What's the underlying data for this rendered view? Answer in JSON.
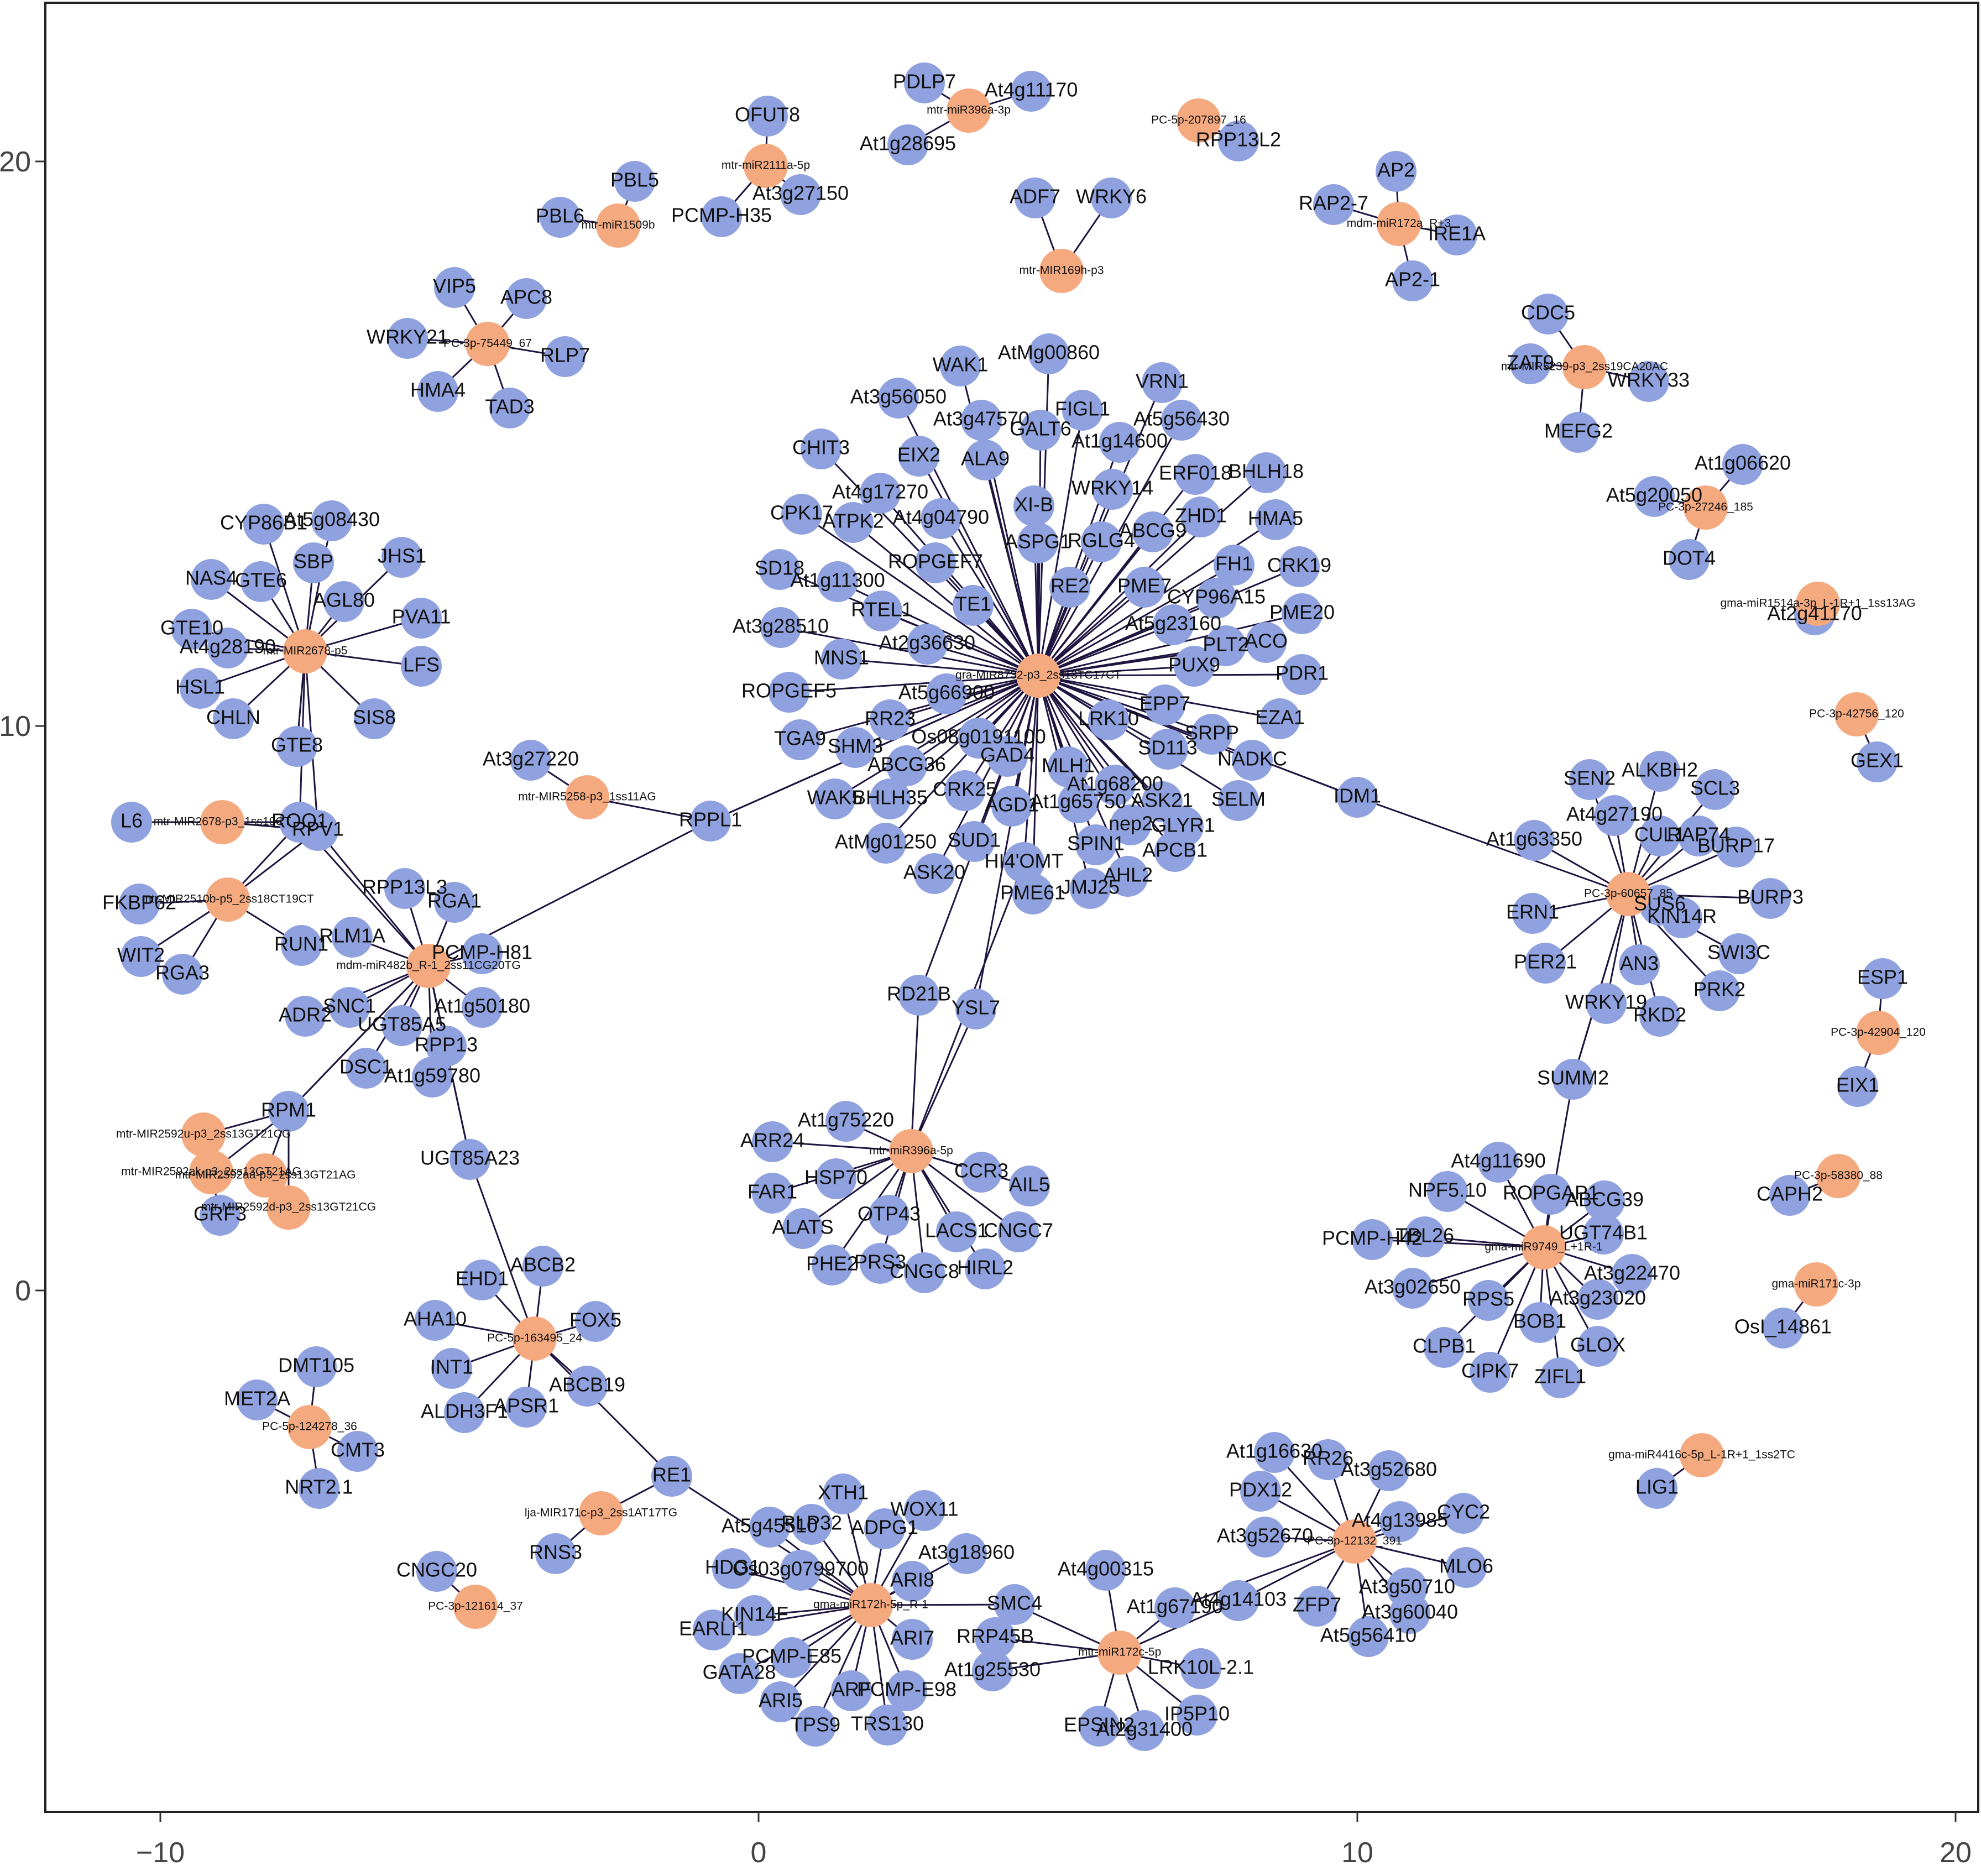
{
  "axes": {
    "x_ticks": [
      "−10",
      "0",
      "10",
      "20"
    ],
    "y_ticks": [
      "20",
      "10",
      "0"
    ]
  },
  "colors": {
    "mirna": "#f5a97f",
    "gene": "#8fa2df",
    "edge": "#1f1440"
  },
  "mirna_nodes": [
    {
      "id": "m1",
      "label": "mtr-miR396a-3p"
    },
    {
      "id": "m2",
      "label": "PC-5p-207897_16"
    },
    {
      "id": "m3",
      "label": "mtr-miR2111a-5p"
    },
    {
      "id": "m4",
      "label": "mtr-miR1509b"
    },
    {
      "id": "m5",
      "label": "mtr-MIR169h-p3"
    },
    {
      "id": "m6",
      "label": "mdm-miR172a_R+3"
    },
    {
      "id": "m7",
      "label": "PC-3p-75449_67"
    },
    {
      "id": "m8",
      "label": "mtr-MIR5239-p3_2ss19CA20AC"
    },
    {
      "id": "m9",
      "label": "PC-3p-27246_185"
    },
    {
      "id": "m10",
      "label": "gma-miR1514a-3p_L-1R+1_1ss13AG"
    },
    {
      "id": "m11",
      "label": "mtr-MIR2678-p5"
    },
    {
      "id": "m12",
      "label": "gra-MIR8732-p3_2ss13TC17CT"
    },
    {
      "id": "m13",
      "label": "PC-3p-42756_120"
    },
    {
      "id": "m14",
      "label": "mtr-MIR5258-p3_1ss11AG"
    },
    {
      "id": "m15",
      "label": "mtr-MIR2678-p3_1ss19CT"
    },
    {
      "id": "m16",
      "label": "mtr-MIR2510b-p5_2ss18CT19CT"
    },
    {
      "id": "m17",
      "label": "mdm-miR482b_R-1_2ss11CG20TG"
    },
    {
      "id": "m18",
      "label": "PC-3p-60657_85"
    },
    {
      "id": "m19",
      "label": "PC-3p-42904_120"
    },
    {
      "id": "m20",
      "label": "mtr-MIR2592u-p3_2ss13GT21CG"
    },
    {
      "id": "m21",
      "label": "mtr-MIR2592ak-p3_2ss13GT21AG"
    },
    {
      "id": "m22",
      "label": "mtr-MIR2592aa-p3_2ss13GT21AG"
    },
    {
      "id": "m23",
      "label": "mtr-MIR2592d-p3_2ss13GT21CG"
    },
    {
      "id": "m24",
      "label": "mtr-miR396a-5p"
    },
    {
      "id": "m25",
      "label": "PC-3p-58380_88"
    },
    {
      "id": "m26",
      "label": "gma-miR9749_L+1R-1"
    },
    {
      "id": "m27",
      "label": "PC-5p-163495_24"
    },
    {
      "id": "m28",
      "label": "gma-miR171c-3p"
    },
    {
      "id": "m29",
      "label": "PC-5p-124278_36"
    },
    {
      "id": "m30",
      "label": "gma-miR4416c-5p_L-1R+1_1ss2TC"
    },
    {
      "id": "m31",
      "label": "lja-MIR171c-p3_2ss1AT17TG"
    },
    {
      "id": "m32",
      "label": "PC-3p-12132_391"
    },
    {
      "id": "m33",
      "label": "PC-3p-121614_37"
    },
    {
      "id": "m34",
      "label": "gma-miR172h-5p_R-1"
    },
    {
      "id": "m35",
      "label": "mtr-miR172c-5p"
    }
  ],
  "gene_nodes": [
    {
      "label": "PDLP7",
      "mirna": "m1"
    },
    {
      "label": "At4g11170",
      "mirna": "m1"
    },
    {
      "label": "At1g28695",
      "mirna": "m1"
    },
    {
      "label": "RPP13L2",
      "mirna": "m2"
    },
    {
      "label": "OFUT8",
      "mirna": "m3"
    },
    {
      "label": "At3g27150",
      "mirna": "m3"
    },
    {
      "label": "PCMP-H35",
      "mirna": "m3"
    },
    {
      "label": "PBL5",
      "mirna": "m4"
    },
    {
      "label": "PBL6",
      "mirna": "m4"
    },
    {
      "label": "ADF7",
      "mirna": "m5"
    },
    {
      "label": "WRKY6",
      "mirna": "m5"
    },
    {
      "label": "AP2",
      "mirna": "m6"
    },
    {
      "label": "RAP2-7",
      "mirna": "m6"
    },
    {
      "label": "IRE1A",
      "mirna": "m6"
    },
    {
      "label": "AP2-1",
      "mirna": "m6"
    },
    {
      "label": "VIP5",
      "mirna": "m7"
    },
    {
      "label": "APC8",
      "mirna": "m7"
    },
    {
      "label": "WRKY21",
      "mirna": "m7"
    },
    {
      "label": "RLP7",
      "mirna": "m7"
    },
    {
      "label": "HMA4",
      "mirna": "m7"
    },
    {
      "label": "TAD3",
      "mirna": "m7"
    },
    {
      "label": "CDC5",
      "mirna": "m8"
    },
    {
      "label": "ZAT9",
      "mirna": "m8"
    },
    {
      "label": "WRKY33",
      "mirna": "m8"
    },
    {
      "label": "MEFG2",
      "mirna": "m8"
    },
    {
      "label": "At1g06620",
      "mirna": "m9"
    },
    {
      "label": "At5g20050",
      "mirna": "m9"
    },
    {
      "label": "DOT4",
      "mirna": "m9"
    },
    {
      "label": "At2g41170",
      "mirna": "m10"
    },
    {
      "label": "CYP86B1",
      "mirna": "m11"
    },
    {
      "label": "At5g08430",
      "mirna": "m11"
    },
    {
      "label": "NAS4",
      "mirna": "m11"
    },
    {
      "label": "GTE6",
      "mirna": "m11"
    },
    {
      "label": "SBP",
      "mirna": "m11"
    },
    {
      "label": "JHS1",
      "mirna": "m11"
    },
    {
      "label": "AGL80",
      "mirna": "m11"
    },
    {
      "label": "PVA11",
      "mirna": "m11"
    },
    {
      "label": "GTE10",
      "mirna": "m11"
    },
    {
      "label": "At4g28190",
      "mirna": "m11"
    },
    {
      "label": "LFS",
      "mirna": "m11"
    },
    {
      "label": "HSL1",
      "mirna": "m11"
    },
    {
      "label": "CHLN",
      "mirna": "m11"
    },
    {
      "label": "SIS8",
      "mirna": "m11"
    },
    {
      "label": "GTE8",
      "mirna": "m11"
    },
    {
      "label": "AtMg00860",
      "mirna": "m12"
    },
    {
      "label": "WAK1",
      "mirna": "m12"
    },
    {
      "label": "VRN1",
      "mirna": "m12"
    },
    {
      "label": "At3g56050",
      "mirna": "m12"
    },
    {
      "label": "FIGL1",
      "mirna": "m12"
    },
    {
      "label": "At5g56430",
      "mirna": "m12"
    },
    {
      "label": "At3g47570",
      "mirna": "m12"
    },
    {
      "label": "CHIT3",
      "mirna": "m12"
    },
    {
      "label": "EIX2",
      "mirna": "m12"
    },
    {
      "label": "GALT6",
      "mirna": "m12"
    },
    {
      "label": "At1g14600",
      "mirna": "m12"
    },
    {
      "label": "ALA9",
      "mirna": "m12"
    },
    {
      "label": "BHLH18",
      "mirna": "m12"
    },
    {
      "label": "At4g17270",
      "mirna": "m12"
    },
    {
      "label": "ERF018",
      "mirna": "m12"
    },
    {
      "label": "CPK17",
      "mirna": "m12"
    },
    {
      "label": "ATPK2",
      "mirna": "m12"
    },
    {
      "label": "XI-B",
      "mirna": "m12"
    },
    {
      "label": "WRKY14",
      "mirna": "m12"
    },
    {
      "label": "At4g04790",
      "mirna": "m12"
    },
    {
      "label": "HMA5",
      "mirna": "m12"
    },
    {
      "label": "ZHD1",
      "mirna": "m12"
    },
    {
      "label": "ASPG1",
      "mirna": "m12"
    },
    {
      "label": "RGLG4",
      "mirna": "m12"
    },
    {
      "label": "ABCG9",
      "mirna": "m12"
    },
    {
      "label": "SD18",
      "mirna": "m12"
    },
    {
      "label": "ROPGEF7",
      "mirna": "m12"
    },
    {
      "label": "FH1",
      "mirna": "m12"
    },
    {
      "label": "CRK19",
      "mirna": "m12"
    },
    {
      "label": "At1g11300",
      "mirna": "m12"
    },
    {
      "label": "RE2",
      "mirna": "m12"
    },
    {
      "label": "PME7",
      "mirna": "m12"
    },
    {
      "label": "TE1",
      "mirna": "m12"
    },
    {
      "label": "CYP96A15",
      "mirna": "m12"
    },
    {
      "label": "PME20",
      "mirna": "m12"
    },
    {
      "label": "RTEL1",
      "mirna": "m12"
    },
    {
      "label": "At3g28510",
      "mirna": "m12"
    },
    {
      "label": "At5g23160",
      "mirna": "m12"
    },
    {
      "label": "ACO",
      "mirna": "m12"
    },
    {
      "label": "At2g36630",
      "mirna": "m12"
    },
    {
      "label": "PLT2",
      "mirna": "m12"
    },
    {
      "label": "MNS1",
      "mirna": "m12"
    },
    {
      "label": "PUX9",
      "mirna": "m12"
    },
    {
      "label": "PDR1",
      "mirna": "m12"
    },
    {
      "label": "ROPGEF5",
      "mirna": "m12"
    },
    {
      "label": "At5g66900",
      "mirna": "m12"
    },
    {
      "label": "EPP7",
      "mirna": "m12"
    },
    {
      "label": "TGA9",
      "mirna": "m12"
    },
    {
      "label": "RR23",
      "mirna": "m12"
    },
    {
      "label": "LRK10",
      "mirna": "m12"
    },
    {
      "label": "SRPP",
      "mirna": "m12"
    },
    {
      "label": "EZA1",
      "mirna": "m12"
    },
    {
      "label": "SHM3",
      "mirna": "m12"
    },
    {
      "label": "Os08g0191100",
      "mirna": "m12"
    },
    {
      "label": "SD113",
      "mirna": "m12"
    },
    {
      "label": "NADKC",
      "mirna": "m12"
    },
    {
      "label": "ABCG36",
      "mirna": "m12"
    },
    {
      "label": "GAD4",
      "mirna": "m12"
    },
    {
      "label": "MLH1",
      "mirna": "m12"
    },
    {
      "label": "WAK5",
      "mirna": "m12"
    },
    {
      "label": "BHLH35",
      "mirna": "m12"
    },
    {
      "label": "CRK25",
      "mirna": "m12"
    },
    {
      "label": "At1g68200",
      "mirna": "m12"
    },
    {
      "label": "ASK21",
      "mirna": "m12"
    },
    {
      "label": "SELM",
      "mirna": "m12"
    },
    {
      "label": "AGD1",
      "mirna": "m12"
    },
    {
      "label": "At1g65750",
      "mirna": "m12"
    },
    {
      "label": "nep2",
      "mirna": "m12"
    },
    {
      "label": "GLYR1",
      "mirna": "m12"
    },
    {
      "label": "AtMg01250",
      "mirna": "m12"
    },
    {
      "label": "SUD1",
      "mirna": "m12"
    },
    {
      "label": "SPIN1",
      "mirna": "m12"
    },
    {
      "label": "APCB1",
      "mirna": "m12"
    },
    {
      "label": "ASK20",
      "mirna": "m12"
    },
    {
      "label": "HI4'OMT",
      "mirna": "m12"
    },
    {
      "label": "AHL2",
      "mirna": "m12"
    },
    {
      "label": "PME61",
      "mirna": "m12"
    },
    {
      "label": "JMJ25",
      "mirna": "m12"
    },
    {
      "label": "RPPL1",
      "mirna": "m12"
    },
    {
      "label": "IDM1",
      "mirna": "m12"
    },
    {
      "label": "RD21B",
      "mirna": "m12"
    },
    {
      "label": "YSL7",
      "mirna": "m12"
    },
    {
      "label": "GEX1",
      "mirna": "m13"
    },
    {
      "label": "At3g27220",
      "mirna": "m14"
    },
    {
      "label": "L6",
      "mirna": "m15"
    },
    {
      "label": "ROQ1",
      "mirna": "m15"
    },
    {
      "label": "RPV1",
      "mirna": "m15"
    },
    {
      "label": "FKBP62",
      "mirna": "m16"
    },
    {
      "label": "WIT2",
      "mirna": "m16"
    },
    {
      "label": "RGA3",
      "mirna": "m16"
    },
    {
      "label": "RUN1",
      "mirna": "m16"
    },
    {
      "label": "RPP13L3",
      "mirna": "m17"
    },
    {
      "label": "RGA1",
      "mirna": "m17"
    },
    {
      "label": "RLM1A",
      "mirna": "m17"
    },
    {
      "label": "PCMP-H81",
      "mirna": "m17"
    },
    {
      "label": "ADR2",
      "mirna": "m17"
    },
    {
      "label": "SNC1",
      "mirna": "m17"
    },
    {
      "label": "At1g50180",
      "mirna": "m17"
    },
    {
      "label": "UGT85A5",
      "mirna": "m17"
    },
    {
      "label": "RPP13",
      "mirna": "m17"
    },
    {
      "label": "DSC1",
      "mirna": "m17"
    },
    {
      "label": "At1g59780",
      "mirna": "m17"
    },
    {
      "label": "RPM1",
      "mirna": "m17"
    },
    {
      "label": "UGT85A23",
      "mirna": "m17"
    },
    {
      "label": "SEN2",
      "mirna": "m18"
    },
    {
      "label": "ALKBH2",
      "mirna": "m18"
    },
    {
      "label": "SCL3",
      "mirna": "m18"
    },
    {
      "label": "At4g27190",
      "mirna": "m18"
    },
    {
      "label": "CUL1",
      "mirna": "m18"
    },
    {
      "label": "RAP74",
      "mirna": "m18"
    },
    {
      "label": "At1g63350",
      "mirna": "m18"
    },
    {
      "label": "BURP17",
      "mirna": "m18"
    },
    {
      "label": "ERN1",
      "mirna": "m18"
    },
    {
      "label": "SUS6",
      "mirna": "m18"
    },
    {
      "label": "KIN14R",
      "mirna": "m18"
    },
    {
      "label": "BURP3",
      "mirna": "m18"
    },
    {
      "label": "PER21",
      "mirna": "m18"
    },
    {
      "label": "AN3",
      "mirna": "m18"
    },
    {
      "label": "SWI3C",
      "mirna": "m18"
    },
    {
      "label": "WRKY19",
      "mirna": "m18"
    },
    {
      "label": "RKD2",
      "mirna": "m18"
    },
    {
      "label": "PRK2",
      "mirna": "m18"
    },
    {
      "label": "SUMM2",
      "mirna": "m18"
    },
    {
      "label": "ESP1",
      "mirna": "m19"
    },
    {
      "label": "EIX1",
      "mirna": "m19"
    },
    {
      "label": "GRF3",
      "mirna": "m21"
    },
    {
      "label": "At1g75220",
      "mirna": "m24"
    },
    {
      "label": "ARR24",
      "mirna": "m24"
    },
    {
      "label": "CCR3",
      "mirna": "m24"
    },
    {
      "label": "AIL5",
      "mirna": "m24"
    },
    {
      "label": "FAR1",
      "mirna": "m24"
    },
    {
      "label": "HSP70",
      "mirna": "m24"
    },
    {
      "label": "OTP43",
      "mirna": "m24"
    },
    {
      "label": "ALATS",
      "mirna": "m24"
    },
    {
      "label": "LACS1",
      "mirna": "m24"
    },
    {
      "label": "CNGC7",
      "mirna": "m24"
    },
    {
      "label": "PHE2",
      "mirna": "m24"
    },
    {
      "label": "PRS3",
      "mirna": "m24"
    },
    {
      "label": "HIRL2",
      "mirna": "m24"
    },
    {
      "label": "CNGC8",
      "mirna": "m24"
    },
    {
      "label": "CAPH2",
      "mirna": "m25"
    },
    {
      "label": "At4g11690",
      "mirna": "m26"
    },
    {
      "label": "NPF5.10",
      "mirna": "m26"
    },
    {
      "label": "ROPGAP1",
      "mirna": "m26"
    },
    {
      "label": "ABCG39",
      "mirna": "m26"
    },
    {
      "label": "PCMP-H42",
      "mirna": "m26"
    },
    {
      "label": "TBL26",
      "mirna": "m26"
    },
    {
      "label": "UGT74B1",
      "mirna": "m26"
    },
    {
      "label": "At3g02650",
      "mirna": "m26"
    },
    {
      "label": "At3g22470",
      "mirna": "m26"
    },
    {
      "label": "RPS5",
      "mirna": "m26"
    },
    {
      "label": "At3g23020",
      "mirna": "m26"
    },
    {
      "label": "BOB1",
      "mirna": "m26"
    },
    {
      "label": "CLPB1",
      "mirna": "m26"
    },
    {
      "label": "GLOX",
      "mirna": "m26"
    },
    {
      "label": "CIPK7",
      "mirna": "m26"
    },
    {
      "label": "ZIFL1",
      "mirna": "m26"
    },
    {
      "label": "ABCB2",
      "mirna": "m27"
    },
    {
      "label": "EHD1",
      "mirna": "m27"
    },
    {
      "label": "AHA10",
      "mirna": "m27"
    },
    {
      "label": "FOX5",
      "mirna": "m27"
    },
    {
      "label": "INT1",
      "mirna": "m27"
    },
    {
      "label": "ABCB19",
      "mirna": "m27"
    },
    {
      "label": "ALDH3F1",
      "mirna": "m27"
    },
    {
      "label": "APSR1",
      "mirna": "m27"
    },
    {
      "label": "RE1",
      "mirna": "m27"
    },
    {
      "label": "OsI_14861",
      "mirna": "m28"
    },
    {
      "label": "DMT105",
      "mirna": "m29"
    },
    {
      "label": "MET2A",
      "mirna": "m29"
    },
    {
      "label": "CMT3",
      "mirna": "m29"
    },
    {
      "label": "NRT2.1",
      "mirna": "m29"
    },
    {
      "label": "LIG1",
      "mirna": "m30"
    },
    {
      "label": "RNS3",
      "mirna": "m31"
    },
    {
      "label": "At1g16630",
      "mirna": "m32"
    },
    {
      "label": "RR26",
      "mirna": "m32"
    },
    {
      "label": "At3g52680",
      "mirna": "m32"
    },
    {
      "label": "PDX12",
      "mirna": "m32"
    },
    {
      "label": "CYC2",
      "mirna": "m32"
    },
    {
      "label": "At3g52670",
      "mirna": "m32"
    },
    {
      "label": "At4g13985",
      "mirna": "m32"
    },
    {
      "label": "MLO6",
      "mirna": "m32"
    },
    {
      "label": "At3g50710",
      "mirna": "m32"
    },
    {
      "label": "ZFP7",
      "mirna": "m32"
    },
    {
      "label": "At3g60040",
      "mirna": "m32"
    },
    {
      "label": "At5g56410",
      "mirna": "m32"
    },
    {
      "label": "At4g14103",
      "mirna": "m32"
    },
    {
      "label": "CNGC20",
      "mirna": "m33"
    },
    {
      "label": "XTH1",
      "mirna": "m34"
    },
    {
      "label": "WOX11",
      "mirna": "m34"
    },
    {
      "label": "At5g45510",
      "mirna": "m34"
    },
    {
      "label": "RLP32",
      "mirna": "m34"
    },
    {
      "label": "ADPG1",
      "mirna": "m34"
    },
    {
      "label": "At3g18960",
      "mirna": "m34"
    },
    {
      "label": "HDG1",
      "mirna": "m34"
    },
    {
      "label": "Os03g0799700",
      "mirna": "m34"
    },
    {
      "label": "ARI8",
      "mirna": "m34"
    },
    {
      "label": "EARLI1",
      "mirna": "m34"
    },
    {
      "label": "KIN14F",
      "mirna": "m34"
    },
    {
      "label": "PCMP-E85",
      "mirna": "m34"
    },
    {
      "label": "ARI7",
      "mirna": "m34"
    },
    {
      "label": "GATA28",
      "mirna": "m34"
    },
    {
      "label": "ARF",
      "mirna": "m34"
    },
    {
      "label": "PCMP-E98",
      "mirna": "m34"
    },
    {
      "label": "ARI5",
      "mirna": "m34"
    },
    {
      "label": "TPS9",
      "mirna": "m34"
    },
    {
      "label": "TRS130",
      "mirna": "m34"
    },
    {
      "label": "SMC4",
      "mirna": "m35"
    },
    {
      "label": "At4g00315",
      "mirna": "m35"
    },
    {
      "label": "RRP45B",
      "mirna": "m35"
    },
    {
      "label": "At1g67190",
      "mirna": "m35"
    },
    {
      "label": "At1g25530",
      "mirna": "m35"
    },
    {
      "label": "LRK10L-2.1",
      "mirna": "m35"
    },
    {
      "label": "IP5P10",
      "mirna": "m35"
    },
    {
      "label": "EPSIN2",
      "mirna": "m35"
    },
    {
      "label": "At2g31400",
      "mirna": "m35"
    }
  ]
}
